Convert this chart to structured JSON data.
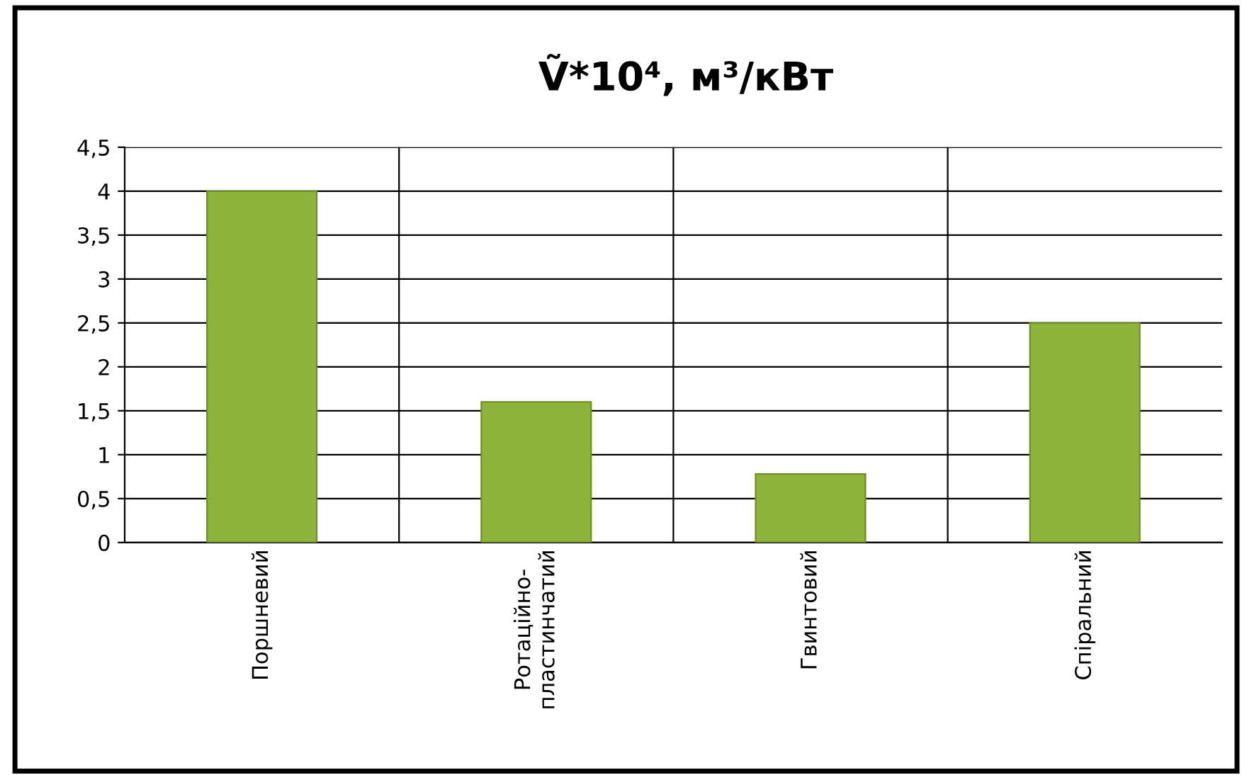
{
  "chart_data": {
    "type": "bar",
    "title": "Ṽ*10⁴, м³/кВт",
    "categories": [
      "Поршневий",
      "Ротаційно-\nпластинчатий",
      "Гвинтовий",
      "Спіральний"
    ],
    "values": [
      4.0,
      1.6,
      0.78,
      2.5
    ],
    "color": "#8db33a",
    "ylim": [
      0,
      4.5
    ],
    "yticks": [
      0,
      {
        "value": 0.5,
        "label": "0,5"
      },
      1,
      {
        "value": 1.5,
        "label": "1,5"
      },
      2,
      {
        "value": 2.5,
        "label": "2,5"
      },
      3,
      {
        "value": 3.5,
        "label": "3,5"
      },
      4,
      {
        "value": 4.5,
        "label": "4,5"
      }
    ],
    "grid": true,
    "legend": false
  }
}
